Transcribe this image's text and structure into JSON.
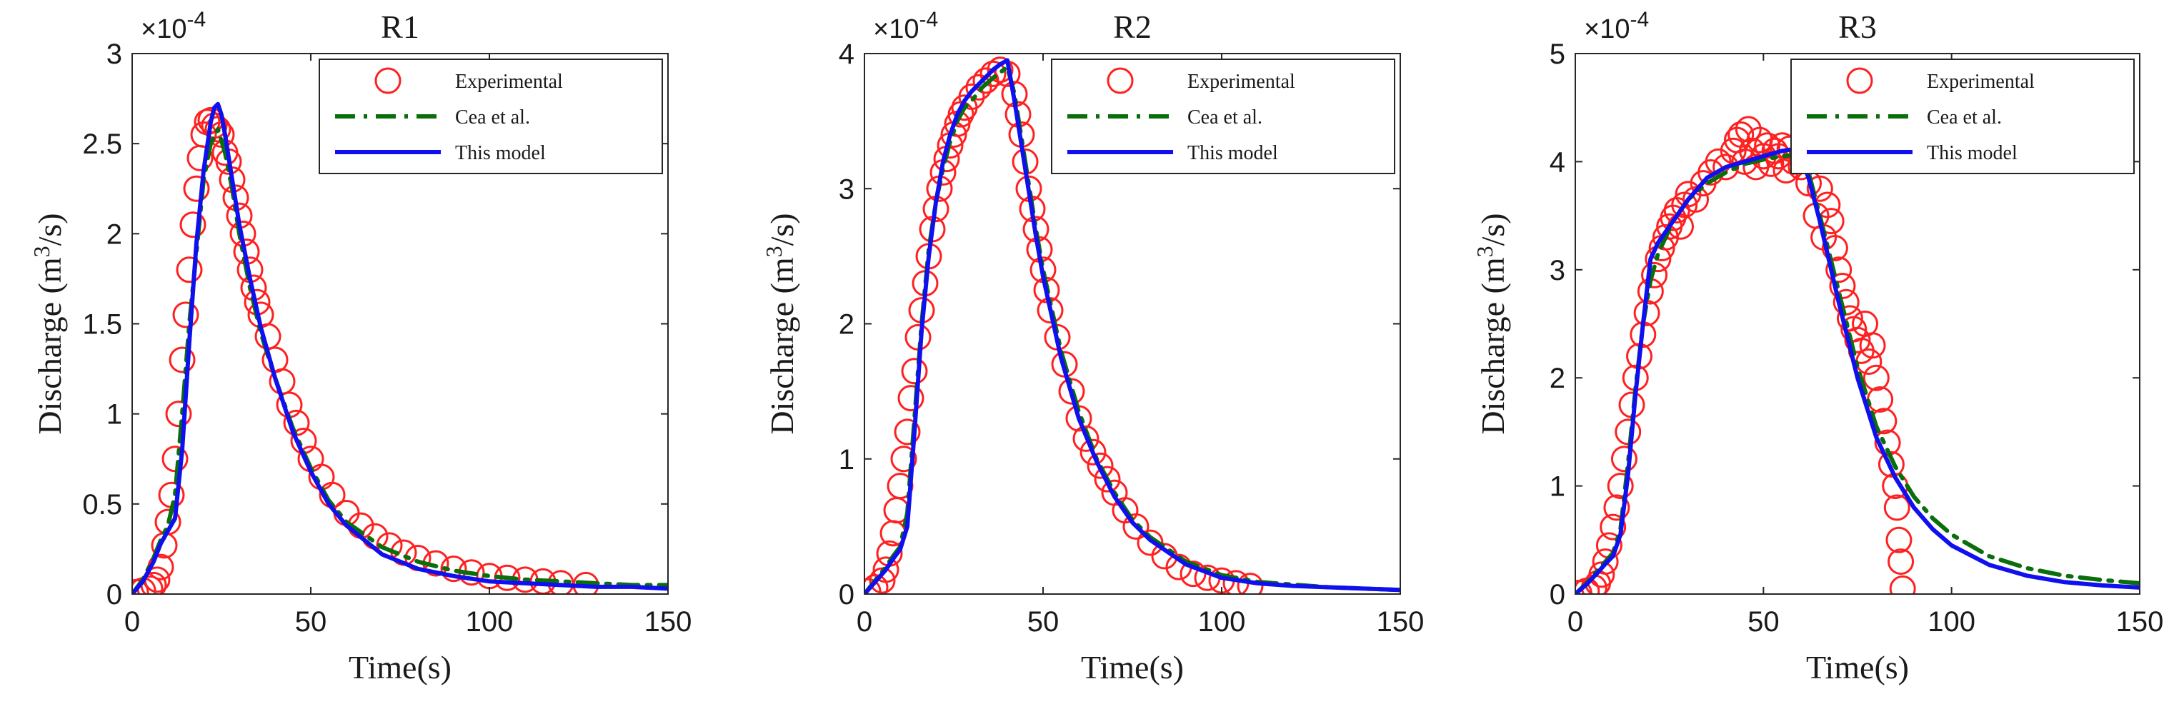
{
  "chart_data": [
    {
      "type": "line",
      "title": "R1",
      "xlabel": "Time(s)",
      "ylabel_prefix": "Discharge (m",
      "ylabel_sup": "3",
      "ylabel_suffix": "/s)",
      "multiplier_base": "×10",
      "multiplier_exp": "-4",
      "xlim": [
        0,
        150
      ],
      "ylim": [
        0,
        3
      ],
      "xticks": [
        0,
        50,
        100,
        150
      ],
      "yticks": [
        0,
        0.5,
        1,
        1.5,
        2,
        2.5,
        3
      ],
      "ytick_labels": [
        "0",
        "0.5",
        "1",
        "1.5",
        "2",
        "2.5",
        "3"
      ],
      "legend": [
        "Experimental",
        "Cea et al.",
        "This model"
      ],
      "series": [
        {
          "name": "Experimental",
          "style": "marker",
          "color": "#ff2020",
          "x": [
            1,
            3,
            5,
            6,
            7,
            8,
            9,
            10,
            11,
            12,
            13,
            14,
            15,
            16,
            17,
            18,
            19,
            20,
            21,
            22,
            23,
            24,
            25,
            26,
            27,
            28,
            29,
            30,
            31,
            32,
            33,
            34,
            35,
            36,
            38,
            40,
            42,
            44,
            46,
            48,
            50,
            53,
            56,
            60,
            64,
            68,
            72,
            76,
            80,
            85,
            90,
            95,
            100,
            105,
            110,
            115,
            120,
            127
          ],
          "y": [
            0.01,
            0.02,
            0.03,
            0.05,
            0.08,
            0.15,
            0.27,
            0.4,
            0.55,
            0.75,
            1.0,
            1.3,
            1.55,
            1.8,
            2.05,
            2.25,
            2.42,
            2.55,
            2.62,
            2.63,
            2.6,
            2.58,
            2.55,
            2.45,
            2.4,
            2.3,
            2.2,
            2.1,
            2.0,
            1.9,
            1.8,
            1.7,
            1.62,
            1.55,
            1.43,
            1.3,
            1.18,
            1.05,
            0.95,
            0.85,
            0.75,
            0.65,
            0.55,
            0.45,
            0.38,
            0.32,
            0.27,
            0.23,
            0.2,
            0.17,
            0.14,
            0.12,
            0.1,
            0.09,
            0.08,
            0.07,
            0.06,
            0.05
          ]
        },
        {
          "name": "Cea et al.",
          "style": "dashdot",
          "color": "#0a6e0a",
          "x": [
            0,
            3,
            6,
            8,
            10,
            12,
            14,
            16,
            18,
            20,
            22,
            24,
            26,
            28,
            30,
            33,
            36,
            40,
            45,
            50,
            55,
            60,
            70,
            80,
            90,
            100,
            110,
            120,
            130,
            140,
            150
          ],
          "y": [
            0,
            0.08,
            0.2,
            0.3,
            0.38,
            0.55,
            1.0,
            1.5,
            1.9,
            2.3,
            2.5,
            2.58,
            2.45,
            2.25,
            2.0,
            1.7,
            1.45,
            1.2,
            0.92,
            0.7,
            0.52,
            0.4,
            0.26,
            0.18,
            0.13,
            0.1,
            0.08,
            0.07,
            0.06,
            0.05,
            0.05
          ]
        },
        {
          "name": "This model",
          "style": "solid",
          "color": "#1010ee",
          "x": [
            0,
            3,
            6,
            8,
            10,
            12,
            14,
            16,
            18,
            20,
            22,
            23,
            24,
            25,
            26,
            28,
            30,
            33,
            36,
            40,
            45,
            50,
            55,
            60,
            70,
            80,
            90,
            100,
            110,
            120,
            130,
            140,
            150
          ],
          "y": [
            0,
            0.07,
            0.18,
            0.28,
            0.35,
            0.42,
            0.8,
            1.4,
            1.95,
            2.35,
            2.62,
            2.7,
            2.72,
            2.66,
            2.55,
            2.3,
            2.05,
            1.75,
            1.48,
            1.2,
            0.9,
            0.68,
            0.5,
            0.38,
            0.22,
            0.14,
            0.1,
            0.07,
            0.06,
            0.05,
            0.04,
            0.04,
            0.03
          ]
        }
      ]
    },
    {
      "type": "line",
      "title": "R2",
      "xlabel": "Time(s)",
      "ylabel_prefix": "Discharge (m",
      "ylabel_sup": "3",
      "ylabel_suffix": "/s)",
      "multiplier_base": "×10",
      "multiplier_exp": "-4",
      "xlim": [
        0,
        150
      ],
      "ylim": [
        0,
        4
      ],
      "xticks": [
        0,
        50,
        100,
        150
      ],
      "yticks": [
        0,
        1,
        2,
        3,
        4
      ],
      "ytick_labels": [
        "0",
        "1",
        "2",
        "3",
        "4"
      ],
      "legend": [
        "Experimental",
        "Cea et al.",
        "This model"
      ],
      "series": [
        {
          "name": "Experimental",
          "style": "marker",
          "color": "#ff2020",
          "x": [
            1,
            3,
            5,
            6,
            7,
            8,
            9,
            10,
            11,
            12,
            13,
            14,
            15,
            16,
            17,
            18,
            19,
            20,
            21,
            22,
            23,
            24,
            25,
            26,
            27,
            28,
            30,
            32,
            34,
            36,
            38,
            40,
            42,
            43,
            44,
            45,
            46,
            47,
            48,
            49,
            50,
            51,
            52,
            54,
            56,
            58,
            60,
            62,
            64,
            66,
            68,
            70,
            73,
            76,
            80,
            84,
            88,
            92,
            96,
            100,
            104,
            108
          ],
          "y": [
            0.02,
            0.05,
            0.1,
            0.18,
            0.3,
            0.45,
            0.62,
            0.8,
            1.0,
            1.2,
            1.45,
            1.65,
            1.9,
            2.1,
            2.3,
            2.5,
            2.7,
            2.85,
            3.0,
            3.12,
            3.22,
            3.32,
            3.4,
            3.48,
            3.55,
            3.6,
            3.68,
            3.75,
            3.8,
            3.85,
            3.88,
            3.85,
            3.7,
            3.55,
            3.4,
            3.2,
            3.0,
            2.85,
            2.7,
            2.55,
            2.4,
            2.25,
            2.1,
            1.9,
            1.7,
            1.5,
            1.3,
            1.15,
            1.05,
            0.95,
            0.85,
            0.75,
            0.62,
            0.5,
            0.38,
            0.28,
            0.2,
            0.15,
            0.12,
            0.1,
            0.08,
            0.06
          ]
        },
        {
          "name": "Cea et al.",
          "style": "dashdot",
          "color": "#0a6e0a",
          "x": [
            0,
            3,
            6,
            8,
            10,
            12,
            14,
            16,
            18,
            20,
            22,
            24,
            26,
            28,
            30,
            33,
            36,
            40,
            42,
            45,
            48,
            50,
            55,
            60,
            65,
            70,
            75,
            80,
            90,
            100,
            110,
            120,
            130,
            140,
            150
          ],
          "y": [
            0,
            0.1,
            0.2,
            0.28,
            0.35,
            0.6,
            1.3,
            2.0,
            2.55,
            2.9,
            3.15,
            3.35,
            3.5,
            3.6,
            3.65,
            3.75,
            3.82,
            3.9,
            3.7,
            3.2,
            2.7,
            2.4,
            1.8,
            1.35,
            1.0,
            0.75,
            0.55,
            0.42,
            0.24,
            0.14,
            0.09,
            0.07,
            0.05,
            0.04,
            0.03
          ]
        },
        {
          "name": "This model",
          "style": "solid",
          "color": "#1010ee",
          "x": [
            0,
            3,
            6,
            8,
            10,
            12,
            14,
            16,
            18,
            20,
            22,
            24,
            26,
            28,
            30,
            33,
            36,
            38,
            40,
            42,
            45,
            48,
            50,
            55,
            60,
            65,
            70,
            75,
            80,
            90,
            100,
            110,
            120,
            130,
            140,
            150
          ],
          "y": [
            0,
            0.09,
            0.18,
            0.26,
            0.33,
            0.5,
            1.2,
            1.95,
            2.5,
            2.9,
            3.2,
            3.4,
            3.55,
            3.65,
            3.72,
            3.8,
            3.88,
            3.92,
            3.95,
            3.65,
            3.15,
            2.65,
            2.35,
            1.75,
            1.3,
            0.98,
            0.72,
            0.53,
            0.4,
            0.22,
            0.12,
            0.08,
            0.06,
            0.05,
            0.04,
            0.03
          ]
        }
      ]
    },
    {
      "type": "line",
      "title": "R3",
      "xlabel": "Time(s)",
      "ylabel_prefix": "Discharge (m",
      "ylabel_sup": "3",
      "ylabel_suffix": "/s)",
      "multiplier_base": "×10",
      "multiplier_exp": "-4",
      "xlim": [
        0,
        150
      ],
      "ylim": [
        0,
        5
      ],
      "xticks": [
        0,
        50,
        100,
        150
      ],
      "yticks": [
        0,
        1,
        2,
        3,
        4,
        5
      ],
      "ytick_labels": [
        "0",
        "1",
        "2",
        "3",
        "4",
        "5"
      ],
      "legend": [
        "Experimental",
        "Cea et al.",
        "This model"
      ],
      "series": [
        {
          "name": "Experimental",
          "style": "marker",
          "color": "#ff2020",
          "x": [
            1,
            3,
            5,
            6,
            7,
            8,
            9,
            10,
            11,
            12,
            13,
            14,
            15,
            16,
            17,
            18,
            19,
            20,
            21,
            22,
            23,
            24,
            25,
            26,
            27,
            28,
            29,
            30,
            32,
            34,
            36,
            38,
            40,
            42,
            43,
            44,
            45,
            46,
            47,
            48,
            49,
            50,
            51,
            52,
            53,
            54,
            55,
            56,
            57,
            58,
            60,
            62,
            64,
            65,
            66,
            67,
            68,
            69,
            70,
            71,
            72,
            73,
            74,
            75,
            76,
            77,
            78,
            79,
            80,
            81,
            82,
            83,
            84,
            85,
            85.5,
            86,
            86.5,
            87
          ],
          "y": [
            0.01,
            0.03,
            0.06,
            0.1,
            0.18,
            0.3,
            0.45,
            0.62,
            0.8,
            1.0,
            1.25,
            1.5,
            1.75,
            2.0,
            2.2,
            2.4,
            2.6,
            2.8,
            2.95,
            3.1,
            3.2,
            3.3,
            3.4,
            3.48,
            3.55,
            3.4,
            3.6,
            3.7,
            3.65,
            3.8,
            3.9,
            4.0,
            3.95,
            4.1,
            4.2,
            4.25,
            4.0,
            4.3,
            4.1,
            3.95,
            4.2,
            4.05,
            4.15,
            3.98,
            4.1,
            4.05,
            4.15,
            3.92,
            4.12,
            4.0,
            3.95,
            3.8,
            3.5,
            3.75,
            3.3,
            3.6,
            3.45,
            3.2,
            3.0,
            2.85,
            2.7,
            2.55,
            2.45,
            2.35,
            2.25,
            2.5,
            2.15,
            2.3,
            2.0,
            1.8,
            1.6,
            1.4,
            1.2,
            1.0,
            0.8,
            0.5,
            0.3,
            0.05
          ]
        },
        {
          "name": "Cea et al.",
          "style": "dashdot",
          "color": "#0a6e0a",
          "x": [
            0,
            3,
            6,
            8,
            10,
            12,
            14,
            16,
            18,
            20,
            22,
            24,
            26,
            28,
            30,
            35,
            40,
            45,
            50,
            55,
            60,
            62,
            65,
            70,
            75,
            80,
            85,
            90,
            95,
            100,
            110,
            120,
            130,
            140,
            150
          ],
          "y": [
            0,
            0.1,
            0.22,
            0.3,
            0.38,
            0.6,
            1.2,
            1.9,
            2.5,
            2.9,
            3.15,
            3.3,
            3.45,
            3.55,
            3.65,
            3.8,
            3.9,
            3.98,
            4.02,
            4.05,
            4.07,
            3.9,
            3.5,
            2.8,
            2.1,
            1.55,
            1.18,
            0.9,
            0.7,
            0.55,
            0.35,
            0.24,
            0.17,
            0.13,
            0.1
          ]
        },
        {
          "name": "This model",
          "style": "solid",
          "color": "#1010ee",
          "x": [
            0,
            3,
            6,
            8,
            10,
            12,
            14,
            16,
            18,
            20,
            22,
            24,
            26,
            28,
            30,
            35,
            40,
            45,
            50,
            55,
            59,
            62,
            65,
            70,
            75,
            80,
            85,
            90,
            95,
            100,
            110,
            120,
            130,
            140,
            150
          ],
          "y": [
            0,
            0.09,
            0.2,
            0.28,
            0.35,
            0.55,
            1.1,
            1.85,
            2.5,
            3.1,
            3.25,
            3.35,
            3.45,
            3.55,
            3.65,
            3.85,
            3.95,
            4.0,
            4.05,
            4.1,
            4.12,
            3.85,
            3.45,
            2.7,
            2.0,
            1.45,
            1.08,
            0.8,
            0.6,
            0.45,
            0.27,
            0.17,
            0.11,
            0.08,
            0.06
          ]
        }
      ]
    }
  ]
}
